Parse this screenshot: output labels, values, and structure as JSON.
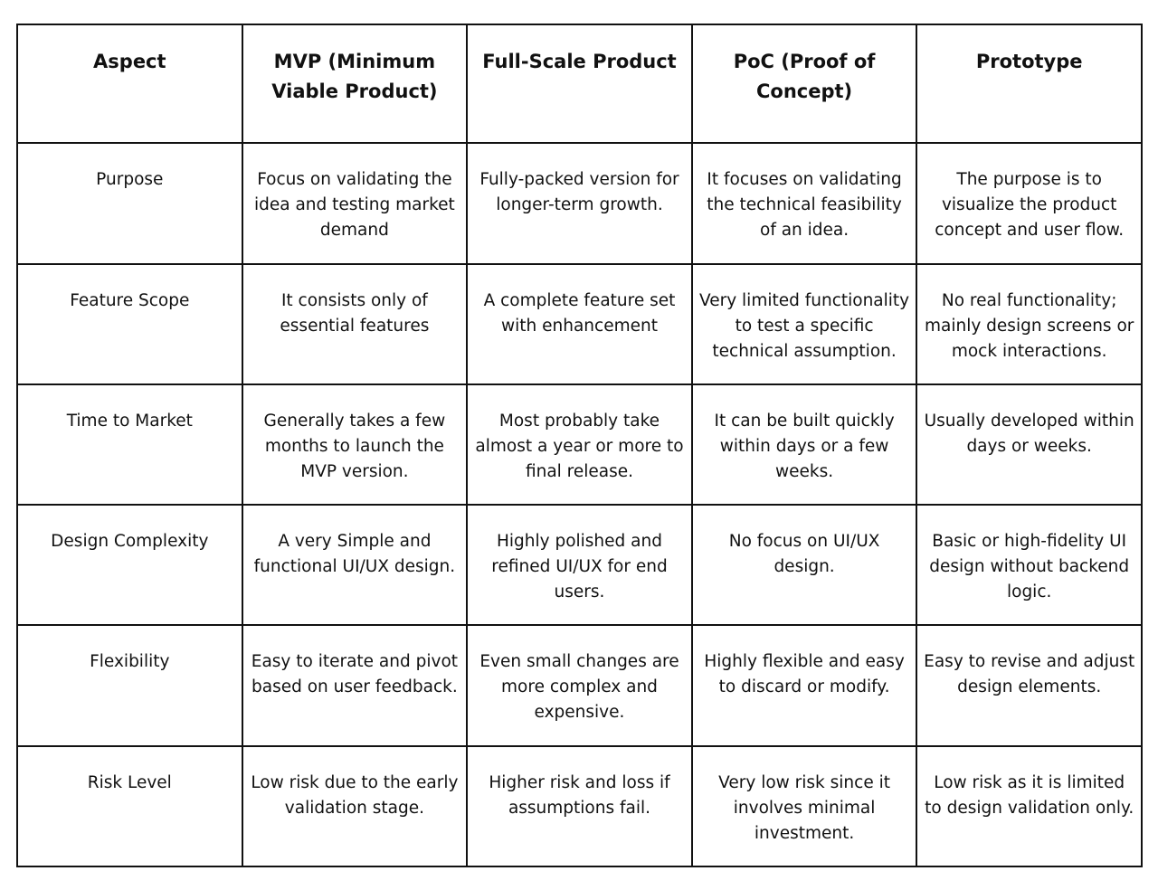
{
  "table": {
    "header": [
      "Aspect",
      "MVP (Minimum Viable Product)",
      "Full-Scale Product",
      "PoC (Proof of Concept)",
      "Prototype"
    ],
    "rows": [
      [
        "Purpose",
        "Focus on validating the idea and testing market demand",
        "Fully-packed version for longer-term growth.",
        "It focuses on validating the technical feasibility of an idea.",
        "The purpose is to visualize the product concept and user flow."
      ],
      [
        "Feature Scope",
        "It consists only of essential features",
        "A complete feature set with enhancement",
        "Very limited functionality to test a specific technical assumption.",
        "No real functionality; mainly design screens or mock interactions."
      ],
      [
        "Time to Market",
        "Generally takes a few months to launch the MVP version.",
        "Most probably take almost a year or more to final release.",
        "It can be built quickly within days or a few weeks.",
        "Usually developed within days or weeks."
      ],
      [
        "Design Complexity",
        "A very Simple and functional UI/UX design.",
        "Highly polished and refined UI/UX for end users.",
        "No focus on UI/UX design.",
        "Basic or high-fidelity UI design without backend logic."
      ],
      [
        "Flexibility",
        "Easy to iterate and pivot based on user feedback.",
        "Even small changes are more complex and expensive.",
        "Highly flexible and easy to discard or modify.",
        "Easy to revise and adjust design elements."
      ],
      [
        "Risk Level",
        "Low risk due to the early validation stage.",
        "Higher risk and loss if assumptions fail.",
        "Very low risk since it involves minimal investment.",
        "Low risk as it is limited to design validation only."
      ]
    ]
  }
}
